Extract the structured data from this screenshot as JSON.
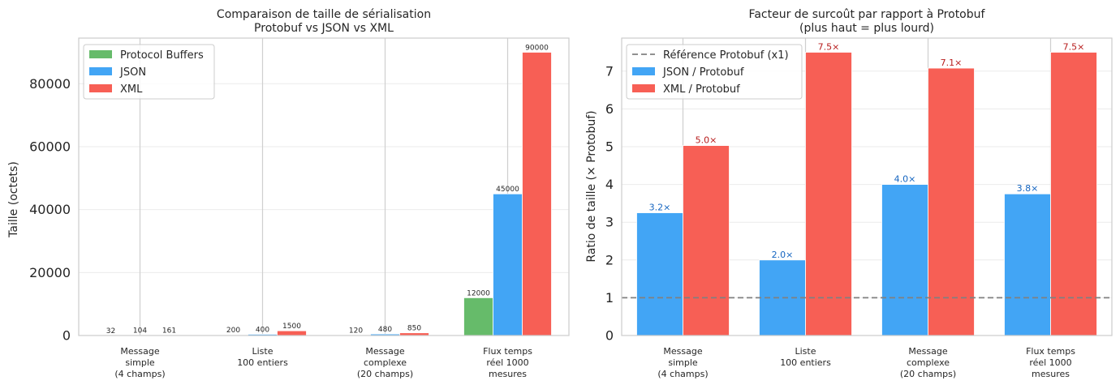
{
  "chart_data": [
    {
      "type": "bar",
      "title": "Comparaison de taille de sérialisation",
      "subtitle": "Protobuf vs JSON vs XML",
      "xlabel": "",
      "ylabel": "Taille (octets)",
      "ylim": [
        0,
        94500
      ],
      "yticks": [
        0,
        20000,
        40000,
        60000,
        80000
      ],
      "grid": true,
      "legend_position": "upper left",
      "categories": [
        [
          "Message",
          "simple",
          "(4 champs)"
        ],
        [
          "Liste",
          "100 entiers"
        ],
        [
          "Message",
          "complexe",
          "(20 champs)"
        ],
        [
          "Flux temps",
          "réel 1000",
          "mesures"
        ]
      ],
      "series": [
        {
          "name": "Protocol Buffers",
          "color": "#66bb6a",
          "values": [
            32,
            200,
            120,
            12000
          ]
        },
        {
          "name": "JSON",
          "color": "#42a5f5",
          "values": [
            104,
            400,
            480,
            45000
          ]
        },
        {
          "name": "XML",
          "color": "#f75f55",
          "values": [
            161,
            1500,
            850,
            90000
          ]
        }
      ]
    },
    {
      "type": "bar",
      "title": "Facteur de surcoût par rapport à Protobuf",
      "subtitle": "(plus haut = plus lourd)",
      "xlabel": "",
      "ylabel": "Ratio de taille (× Protobuf)",
      "ylim": [
        0,
        7.875
      ],
      "yticks": [
        0,
        1,
        2,
        3,
        4,
        5,
        6,
        7
      ],
      "grid": true,
      "legend_position": "upper left",
      "reference_line": {
        "name": "Référence Protobuf (x1)",
        "value": 1,
        "color": "#808080"
      },
      "categories": [
        [
          "Message",
          "simple",
          "(4 champs)"
        ],
        [
          "Liste",
          "100 entiers"
        ],
        [
          "Message",
          "complexe",
          "(20 champs)"
        ],
        [
          "Flux temps",
          "réel 1000",
          "mesures"
        ]
      ],
      "series": [
        {
          "name": "JSON / Protobuf",
          "color": "#42a5f5",
          "label_color": "#1565c0",
          "values": [
            3.25,
            2.0,
            4.0,
            3.75
          ],
          "labels": [
            "3.2×",
            "2.0×",
            "4.0×",
            "3.8×"
          ]
        },
        {
          "name": "XML / Protobuf",
          "color": "#f75f55",
          "label_color": "#b71c1c",
          "values": [
            5.03,
            7.5,
            7.08,
            7.5
          ],
          "labels": [
            "5.0×",
            "7.5×",
            "7.1×",
            "7.5×"
          ]
        }
      ]
    }
  ]
}
